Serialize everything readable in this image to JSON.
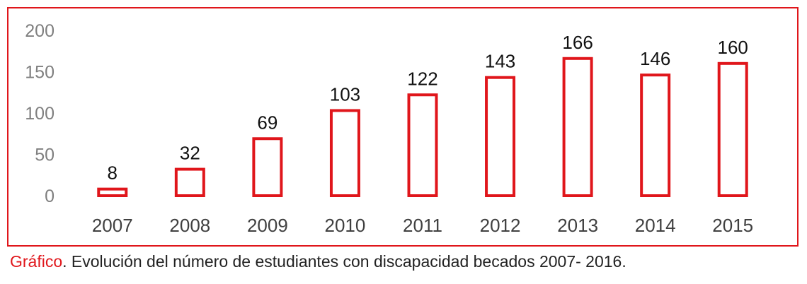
{
  "chart_data": {
    "type": "bar",
    "categories": [
      "2007",
      "2008",
      "2009",
      "2010",
      "2011",
      "2012",
      "2013",
      "2014",
      "2015"
    ],
    "values": [
      8,
      32,
      69,
      103,
      122,
      143,
      166,
      146,
      160
    ],
    "data_labels": [
      "8",
      "32",
      "69",
      "103",
      "122",
      "143",
      "166",
      "146",
      "160"
    ],
    "y_ticks": [
      "0",
      "50",
      "100",
      "150",
      "200"
    ],
    "ylim": [
      0,
      200
    ],
    "grid": false,
    "legend": "none",
    "title": "",
    "xlabel": "",
    "ylabel": "",
    "bar_style": "outline",
    "colors": {
      "bar_stroke": "#e0161b",
      "bar_fill": "#ffffff",
      "frame": "#e0161b"
    }
  },
  "caption": {
    "prefix": "Gráfico",
    "text": ". Evolución del número de estudiantes con discapacidad becados 2007- 2016."
  }
}
